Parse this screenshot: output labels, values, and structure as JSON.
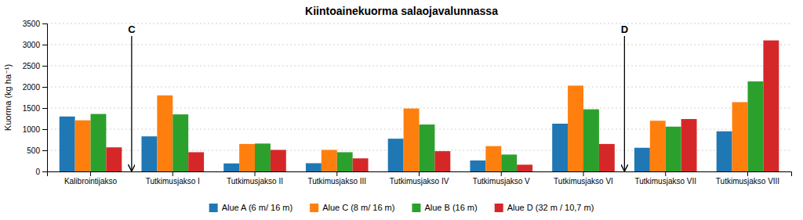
{
  "chart_data": {
    "type": "bar",
    "title": "Kiintoainekuorma salaojavalunnassa",
    "y_label": "Kuorma (kg ha⁻¹)",
    "categories": [
      "Kalibrointijakso",
      "Tutkimusjakso I",
      "Tutkimusjakso II",
      "Tutkimusjakso III",
      "Tutkimusjakso IV",
      "Tutkimusjakso V",
      "Tutkimusjakso VI",
      "Tutkimusjakso VII",
      "Tutkimusjakso VIII"
    ],
    "series": [
      {
        "name": "Alue A (6 m/ 16 m)",
        "values": [
          1300,
          830,
          190,
          195,
          775,
          260,
          1130,
          560,
          950
        ]
      },
      {
        "name": "Alue C (8 m/ 16 m)",
        "values": [
          1210,
          1800,
          650,
          510,
          1490,
          600,
          2030,
          1200,
          1640
        ]
      },
      {
        "name": "Alue B (16 m)",
        "values": [
          1360,
          1350,
          660,
          455,
          1110,
          400,
          1470,
          1060,
          2130
        ]
      },
      {
        "name": "Alue D (32 m / 10,7 m)",
        "values": [
          570,
          455,
          510,
          310,
          480,
          160,
          650,
          1240,
          3100
        ]
      }
    ],
    "annotations": [
      {
        "text": "C",
        "category": "Tutkimusjakso I"
      },
      {
        "text": "D",
        "category": "Tutkimusjakso VII"
      }
    ],
    "ylim": [
      0,
      3500
    ],
    "yticks": [
      0,
      500,
      1000,
      1500,
      2000,
      2500,
      3000,
      3500
    ],
    "grid": true,
    "legend": "bottom"
  }
}
